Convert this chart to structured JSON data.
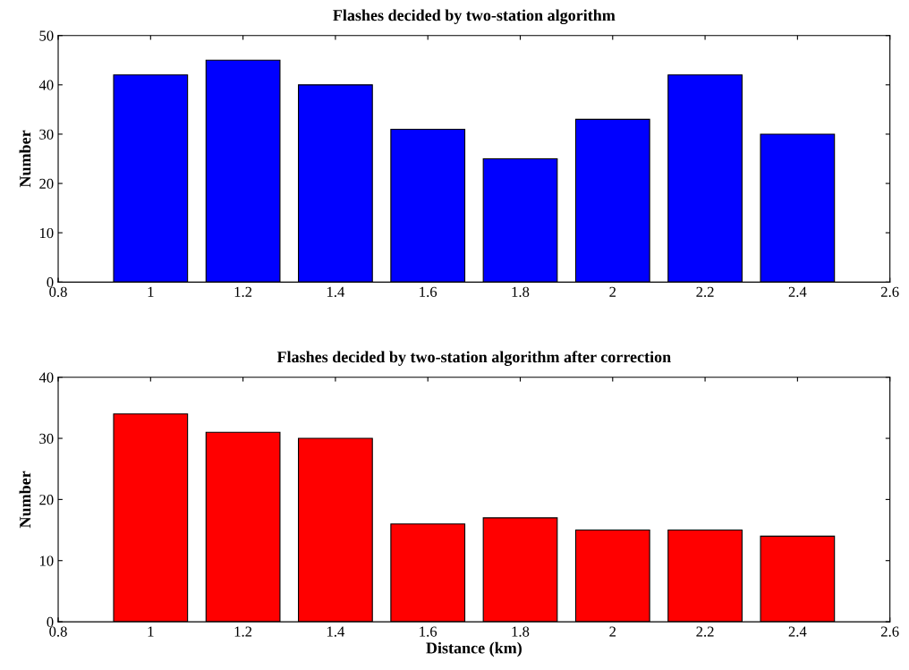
{
  "chart_data": [
    {
      "type": "bar",
      "title": "Flashes decided by two-station algorithm",
      "ylabel": "Number",
      "x": [
        1,
        1.2,
        1.4,
        1.6,
        1.8,
        2,
        2.2,
        2.4
      ],
      "values": [
        42,
        45,
        40,
        31,
        25,
        33,
        42,
        30
      ],
      "color": "#0000ff",
      "xlim": [
        0.8,
        2.6
      ],
      "xticks": [
        0.8,
        1,
        1.2,
        1.4,
        1.6,
        1.8,
        2,
        2.2,
        2.4,
        2.6
      ],
      "ylim": [
        0,
        50
      ],
      "yticks": [
        0,
        10,
        20,
        30,
        40,
        50
      ],
      "grid": false,
      "legend": false
    },
    {
      "type": "bar",
      "title": "Flashes decided by two-station algorithm after correction",
      "xlabel": "Distance (km)",
      "ylabel": "Number",
      "x": [
        1,
        1.2,
        1.4,
        1.6,
        1.8,
        2,
        2.2,
        2.4
      ],
      "values": [
        34,
        31,
        30,
        16,
        17,
        15,
        15,
        14
      ],
      "color": "#ff0000",
      "xlim": [
        0.8,
        2.6
      ],
      "xticks": [
        0.8,
        1,
        1.2,
        1.4,
        1.6,
        1.8,
        2,
        2.2,
        2.4,
        2.6
      ],
      "ylim": [
        0,
        40
      ],
      "yticks": [
        0,
        10,
        20,
        30,
        40
      ],
      "grid": false,
      "legend": false
    }
  ]
}
